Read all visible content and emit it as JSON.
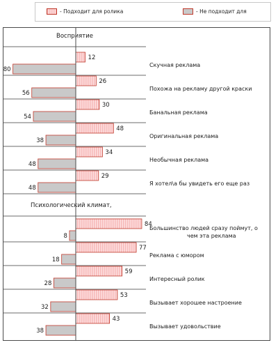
{
  "legend": {
    "suitable": "- Подходит для ролика",
    "unsuitable": "- Не подходит для"
  },
  "colors": {
    "suitable_fill": "#f6b9b9",
    "suitable_stroke": "#c0392b",
    "unsuitable_fill": "#c9c9c9",
    "unsuitable_stroke": "#c0392b"
  },
  "chart_data": {
    "type": "bar",
    "orientation": "horizontal",
    "title": "",
    "xlabel": "",
    "ylabel": "",
    "xlim": [
      -90,
      90
    ],
    "legend_position": "top",
    "series": [
      {
        "key": "suitable",
        "name": "- Подходит для ролика"
      },
      {
        "key": "unsuitable",
        "name": "- Не подходит для"
      }
    ],
    "sections": [
      {
        "title": "Восприятие",
        "items": [
          {
            "label": [
              "Скучная реклама"
            ],
            "suitable": 12,
            "unsuitable": 80
          },
          {
            "label": [
              "Похожа на рекламу другой краски"
            ],
            "suitable": 26,
            "unsuitable": 56
          },
          {
            "label": [
              "Банальная реклама"
            ],
            "suitable": 30,
            "unsuitable": 54
          },
          {
            "label": [
              "Оригинальная реклама"
            ],
            "suitable": 48,
            "unsuitable": 38
          },
          {
            "label": [
              "Необычная реклама"
            ],
            "suitable": 34,
            "unsuitable": 48
          },
          {
            "label": [
              "Я хотел\\а бы увидеть его еще раз"
            ],
            "suitable": 29,
            "unsuitable": 48
          }
        ]
      },
      {
        "title": "Психологический климат,",
        "items": [
          {
            "label": [
              "Большинство людей сразу поймут, о",
              "чем эта реклама"
            ],
            "suitable": 84,
            "unsuitable": 8
          },
          {
            "label": [
              "Реклама с юмором"
            ],
            "suitable": 77,
            "unsuitable": 18
          },
          {
            "label": [
              "Интересный ролик"
            ],
            "suitable": 59,
            "unsuitable": 28
          },
          {
            "label": [
              "Вызывает хорошее настроение"
            ],
            "suitable": 53,
            "unsuitable": 32
          },
          {
            "label": [
              "Вызывает удовольствие"
            ],
            "suitable": 43,
            "unsuitable": 38
          }
        ]
      }
    ]
  }
}
